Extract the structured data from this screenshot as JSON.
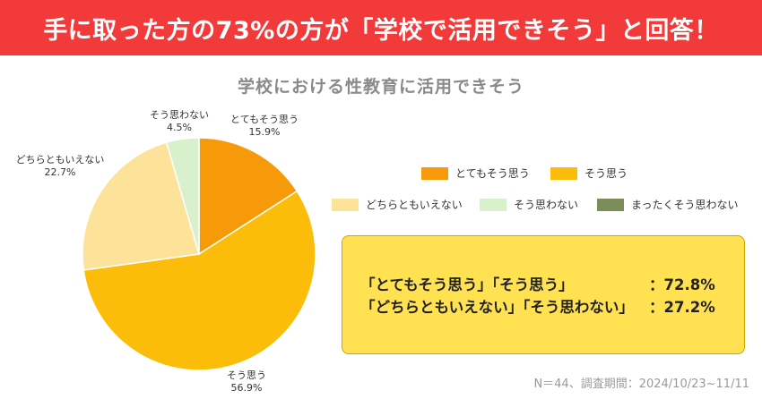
{
  "banner": {
    "text": "手に取った方の73%の方が「学校で活用できそう」と回答！"
  },
  "chart_data": {
    "type": "pie",
    "title": "学校における性教育に活用できそう",
    "slices": [
      {
        "label": "とてもそう思う",
        "value": 15.9,
        "display": "15.9%",
        "color": "#f79a0a"
      },
      {
        "label": "そう思う",
        "value": 56.9,
        "display": "56.9%",
        "color": "#fbbd0a"
      },
      {
        "label": "どちらともいえない",
        "value": 22.7,
        "display": "22.7%",
        "color": "#fde39a"
      },
      {
        "label": "そう思わない",
        "value": 4.5,
        "display": "4.5%",
        "color": "#d9f0cc"
      },
      {
        "label": "まったくそう思わない",
        "value": 0,
        "display": "",
        "color": "#7b8e5a"
      }
    ],
    "legend_placement": "right"
  },
  "summary": {
    "rows": [
      {
        "label": "「とてもそう思う」「そう思う」",
        "value": "：72.8%"
      },
      {
        "label": "「どちらともいえない」「そう思わない」",
        "value": "：27.2%"
      }
    ]
  },
  "footnote": "N＝44、調査期間：2024/10/23~11/11"
}
